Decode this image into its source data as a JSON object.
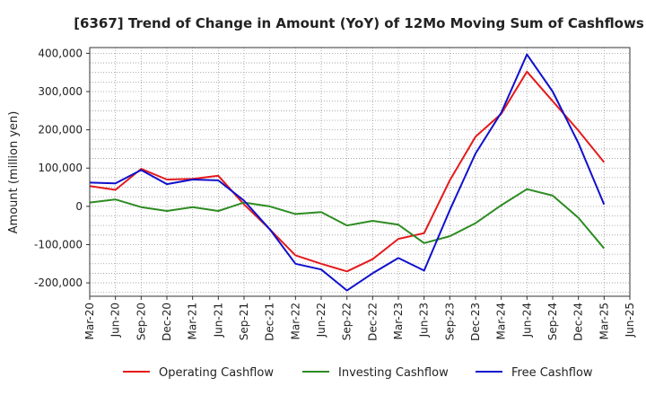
{
  "chart_data": {
    "type": "line",
    "title": "[6367]  Trend of Change in Amount (YoY) of 12Mo Moving Sum of Cashflows",
    "xlabel": "",
    "ylabel": "Amount (million yen)",
    "ylim": [
      -235000,
      415000
    ],
    "yticks": [
      400000,
      300000,
      200000,
      100000,
      0,
      -100000,
      -200000
    ],
    "ytick_labels": [
      "400,000",
      "300,000",
      "200,000",
      "100,000",
      "0",
      "-100,000",
      "-200,000"
    ],
    "grid": true,
    "legend_position": "bottom",
    "categories": [
      "Mar-20",
      "Jun-20",
      "Sep-20",
      "Dec-20",
      "Mar-21",
      "Jun-21",
      "Sep-21",
      "Dec-21",
      "Mar-22",
      "Jun-22",
      "Sep-22",
      "Dec-22",
      "Mar-23",
      "Jun-23",
      "Sep-23",
      "Dec-23",
      "Mar-24",
      "Jun-24",
      "Sep-24",
      "Dec-24",
      "Mar-25",
      "Jun-25"
    ],
    "series": [
      {
        "name": "Operating Cashflow",
        "color": "#e41a1c",
        "values": [
          53000,
          43000,
          98000,
          70000,
          72000,
          80000,
          5000,
          -60000,
          -128000,
          -150000,
          -170000,
          -138000,
          -85000,
          -70000,
          68000,
          182000,
          242000,
          352000,
          275000,
          198000,
          115000,
          null
        ]
      },
      {
        "name": "Investing Cashflow",
        "color": "#2e8b22",
        "values": [
          10000,
          18000,
          -2000,
          -12000,
          -2000,
          -12000,
          10000,
          0,
          -20000,
          -15000,
          -50000,
          -38000,
          -48000,
          -96000,
          -78000,
          -44000,
          3000,
          45000,
          28000,
          -30000,
          -110000,
          null
        ]
      },
      {
        "name": "Free Cashflow",
        "color": "#1010cc",
        "values": [
          62000,
          60000,
          95000,
          58000,
          70000,
          68000,
          15000,
          -60000,
          -150000,
          -165000,
          -220000,
          -175000,
          -135000,
          -168000,
          -10000,
          138000,
          245000,
          397000,
          300000,
          165000,
          5000,
          null
        ]
      }
    ]
  }
}
